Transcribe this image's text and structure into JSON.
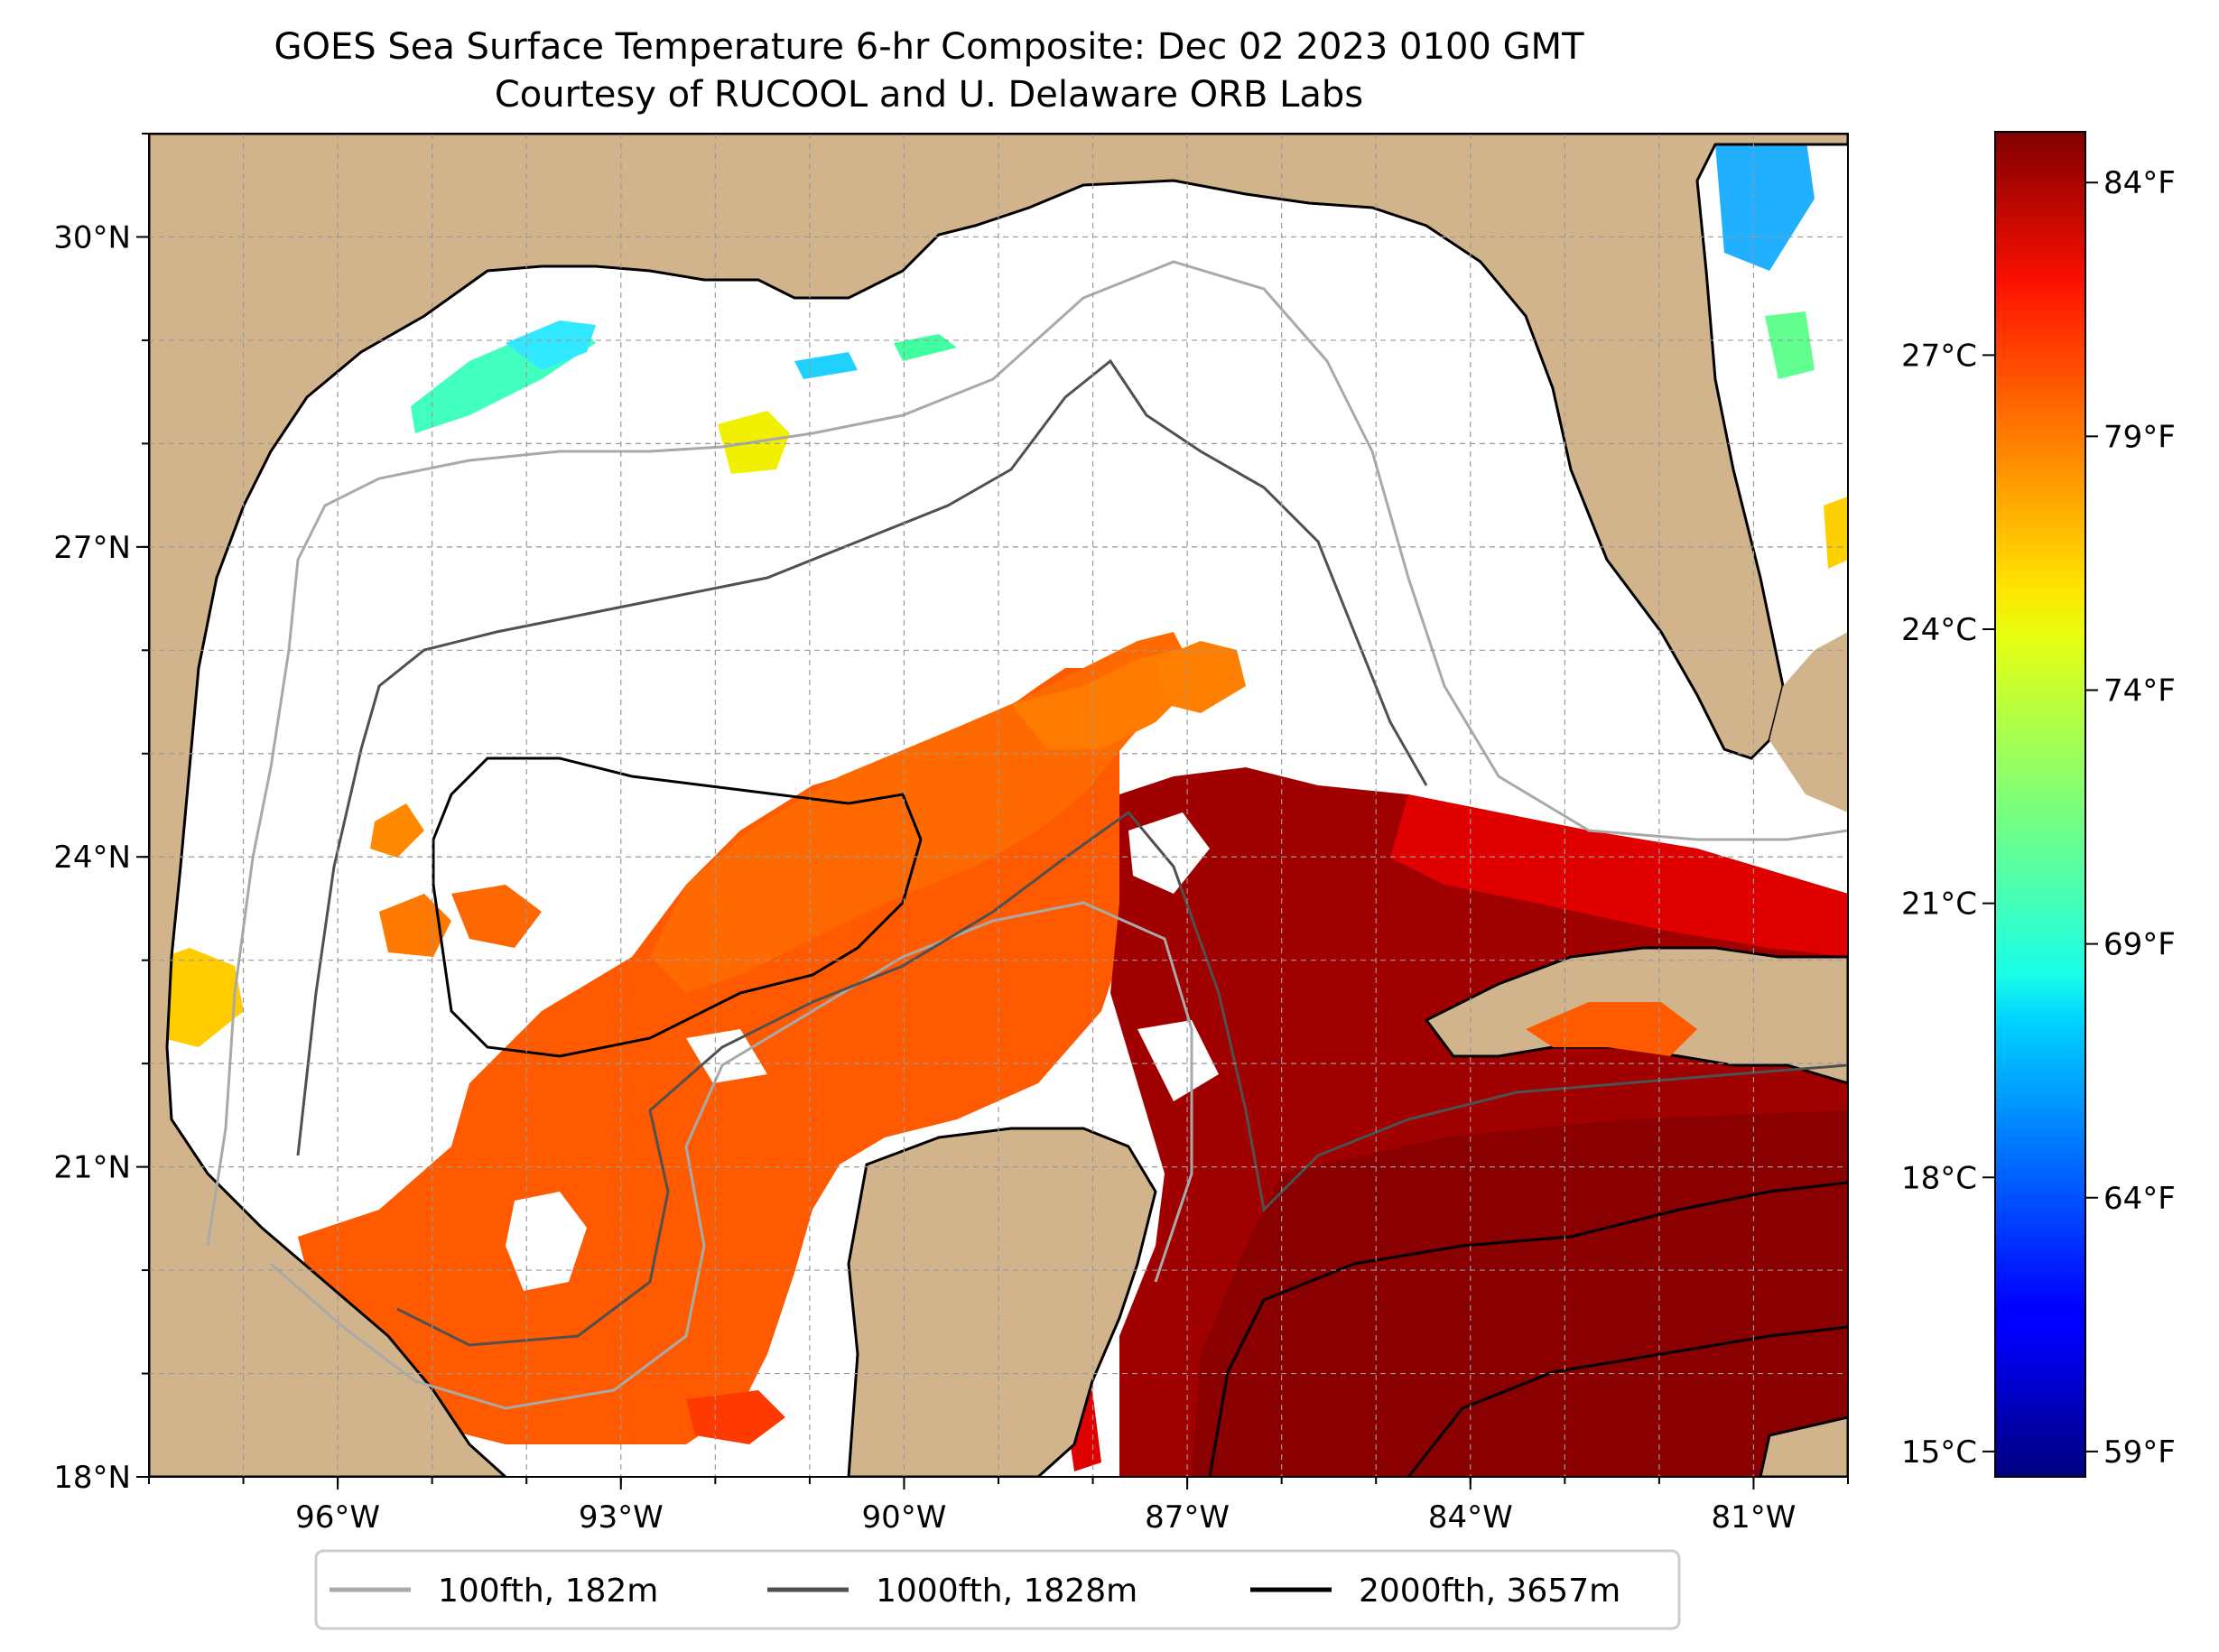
{
  "title": {
    "line1": "GOES Sea Surface Temperature 6-hr Composite: Dec 02 2023 0100 GMT",
    "line2": "Courtesy of RUCOOL and U. Delaware ORB Labs"
  },
  "map": {
    "lon_range": [
      -98,
      -80
    ],
    "lat_range": [
      18,
      31
    ],
    "lon_ticks": [
      {
        "value": -96,
        "label": "96°W"
      },
      {
        "value": -93,
        "label": "93°W"
      },
      {
        "value": -90,
        "label": "90°W"
      },
      {
        "value": -87,
        "label": "87°W"
      },
      {
        "value": -84,
        "label": "84°W"
      },
      {
        "value": -81,
        "label": "81°W"
      }
    ],
    "lat_ticks": [
      {
        "value": 30,
        "label": "30°N"
      },
      {
        "value": 27,
        "label": "27°N"
      },
      {
        "value": 24,
        "label": "24°N"
      },
      {
        "value": 21,
        "label": "21°N"
      },
      {
        "value": 18,
        "label": "18°N"
      }
    ],
    "land_color": "#d2b48c",
    "ocean_color": "#ffffff",
    "gridlines": true
  },
  "colorbar": {
    "colormap": "jet",
    "range_f": [
      58.5,
      85
    ],
    "celsius_ticks": [
      {
        "value": 15,
        "label": "15°C"
      },
      {
        "value": 18,
        "label": "18°C"
      },
      {
        "value": 21,
        "label": "21°C"
      },
      {
        "value": 24,
        "label": "24°C"
      },
      {
        "value": 27,
        "label": "27°C"
      }
    ],
    "fahrenheit_ticks": [
      {
        "value": 59,
        "label": "59°F"
      },
      {
        "value": 64,
        "label": "64°F"
      },
      {
        "value": 69,
        "label": "69°F"
      },
      {
        "value": 74,
        "label": "74°F"
      },
      {
        "value": 79,
        "label": "79°F"
      },
      {
        "value": 84,
        "label": "84°F"
      }
    ]
  },
  "legend": {
    "placement": "bottom-center",
    "items": [
      {
        "label": "100fth, 182m",
        "color": "#a9a9a9"
      },
      {
        "label": "1000fth, 1828m",
        "color": "#505050"
      },
      {
        "label": "2000fth, 3657m",
        "color": "#000000"
      }
    ]
  }
}
